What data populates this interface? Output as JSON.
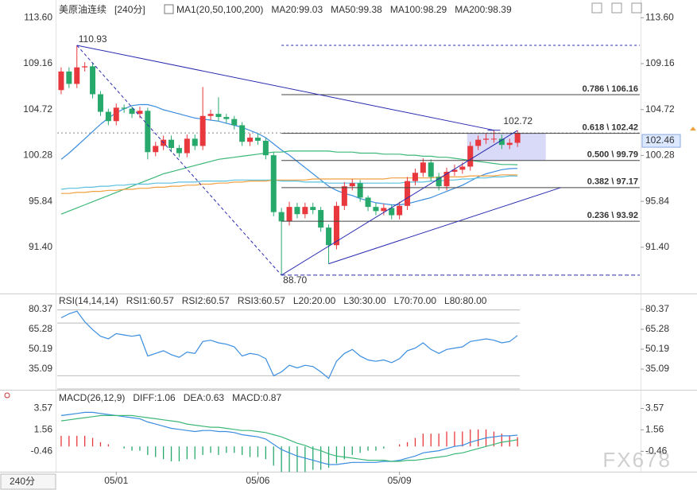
{
  "chart_data": [
    {
      "type": "candlestick",
      "title": "美原油连续",
      "period": "[240分]",
      "indicator": "MA1(20,50,100,200)",
      "categories": [
        null,
        null,
        null,
        null,
        null,
        null,
        null,
        "05/01",
        null,
        null,
        null,
        null,
        null,
        null,
        null,
        null,
        null,
        null,
        null,
        null,
        null,
        null,
        null,
        null,
        null,
        "05/06",
        null,
        null,
        null,
        null,
        null,
        null,
        null,
        null,
        null,
        null,
        null,
        null,
        null,
        null,
        null,
        null,
        null,
        "05/09",
        null,
        null,
        null,
        null,
        null,
        null,
        null,
        null,
        null,
        null,
        null,
        null,
        null,
        null,
        null
      ],
      "open": [
        106.6,
        108.4,
        107.2,
        108.8,
        108.9,
        106.2,
        104.5,
        103.6,
        104.9,
        104.8,
        104.3,
        104.6,
        100.6,
        101.2,
        101.8,
        101.0,
        100.5,
        101.9,
        101.2,
        104.1,
        104.3,
        104.0,
        103.8,
        103.2,
        101.6,
        102.0,
        101.7,
        100.3,
        94.8,
        93.9,
        95.3,
        94.6,
        95.3,
        95.0,
        93.3,
        91.6,
        95.4,
        97.3,
        97.6,
        96.2,
        95.3,
        94.9,
        95.2,
        94.5,
        95.4,
        97.8,
        98.6,
        99.6,
        98.2,
        97.3,
        98.7,
        98.9,
        99.2,
        101.2,
        101.8,
        101.9,
        101.9,
        101.3,
        101.5
      ],
      "high": [
        108.8,
        108.8,
        110.93,
        109.3,
        109.2,
        106.5,
        104.8,
        105.3,
        105.2,
        105.0,
        105.0,
        104.9,
        101.6,
        102.2,
        102.2,
        101.3,
        102.3,
        102.3,
        106.9,
        104.7,
        105.9,
        104.3,
        104.1,
        103.5,
        102.4,
        102.4,
        102.0,
        100.6,
        95.2,
        95.8,
        95.7,
        95.7,
        95.7,
        95.3,
        93.6,
        95.8,
        97.7,
        98.0,
        97.9,
        96.4,
        95.7,
        95.6,
        95.5,
        95.8,
        98.2,
        99.0,
        100.0,
        99.9,
        98.6,
        99.1,
        99.4,
        99.6,
        101.6,
        102.2,
        102.4,
        102.72,
        102.3,
        101.9,
        102.7
      ],
      "low": [
        106.2,
        106.8,
        106.8,
        108.4,
        105.8,
        104.1,
        103.2,
        103.2,
        104.4,
        103.9,
        103.9,
        99.9,
        100.2,
        100.8,
        100.6,
        100.1,
        100.1,
        100.8,
        100.8,
        103.7,
        103.6,
        103.4,
        102.8,
        101.2,
        101.2,
        101.3,
        99.9,
        94.4,
        88.7,
        93.5,
        94.2,
        94.2,
        94.6,
        92.9,
        89.8,
        91.2,
        95.0,
        96.9,
        95.8,
        94.9,
        94.5,
        94.5,
        94.1,
        94.1,
        95.0,
        97.4,
        98.2,
        97.8,
        96.9,
        96.9,
        98.3,
        98.5,
        98.8,
        100.8,
        101.4,
        101.5,
        100.9,
        100.9,
        101.1
      ],
      "close": [
        108.4,
        107.2,
        108.8,
        108.9,
        106.2,
        104.5,
        103.6,
        104.9,
        104.8,
        104.3,
        104.6,
        100.6,
        101.2,
        101.8,
        101.0,
        100.5,
        101.9,
        101.2,
        104.1,
        104.3,
        104.0,
        103.8,
        103.2,
        101.6,
        102.0,
        101.7,
        100.3,
        94.8,
        93.9,
        95.3,
        94.6,
        95.3,
        95.0,
        93.3,
        91.6,
        95.4,
        97.3,
        97.6,
        96.2,
        95.3,
        94.9,
        95.2,
        94.5,
        95.4,
        97.8,
        98.6,
        99.6,
        98.2,
        97.3,
        98.7,
        98.9,
        99.2,
        101.2,
        101.8,
        101.9,
        101.9,
        101.3,
        101.5,
        102.46
      ],
      "up_color": "#e8383d",
      "down_color": "#27a96c",
      "series": [
        {
          "name": "MA20",
          "label": "MA20:99.03",
          "color": "#3a8de0",
          "values": [
            99.9,
            100.5,
            101.2,
            101.9,
            102.6,
            103.3,
            103.9,
            104.4,
            104.8,
            105.1,
            105.2,
            105.2,
            105.0,
            104.7,
            104.5,
            104.3,
            104.1,
            103.9,
            103.8,
            103.7,
            103.6,
            103.4,
            103.2,
            103.0,
            102.7,
            102.4,
            102.0,
            101.4,
            100.8,
            100.3,
            99.7,
            99.1,
            98.5,
            97.9,
            97.3,
            96.9,
            96.6,
            96.4,
            96.1,
            95.9,
            95.7,
            95.6,
            95.5,
            95.5,
            95.6,
            95.8,
            96.0,
            96.2,
            96.5,
            96.8,
            97.1,
            97.4,
            97.8,
            98.2,
            98.5,
            98.7,
            98.9,
            99.0,
            99.03
          ]
        },
        {
          "name": "MA50",
          "label": "MA50:99.38",
          "color": "#3cb878",
          "values": [
            94.6,
            94.9,
            95.2,
            95.5,
            95.8,
            96.1,
            96.4,
            96.7,
            97.0,
            97.3,
            97.6,
            97.9,
            98.2,
            98.5,
            98.7,
            98.9,
            99.1,
            99.3,
            99.5,
            99.7,
            99.9,
            100.0,
            100.1,
            100.2,
            100.3,
            100.4,
            100.5,
            100.6,
            100.6,
            100.7,
            100.7,
            100.7,
            100.7,
            100.7,
            100.7,
            100.6,
            100.6,
            100.6,
            100.5,
            100.5,
            100.5,
            100.4,
            100.4,
            100.4,
            100.3,
            100.3,
            100.2,
            100.2,
            100.1,
            100.1,
            100.0,
            99.9,
            99.8,
            99.7,
            99.6,
            99.5,
            99.4,
            99.4,
            99.38
          ]
        },
        {
          "name": "MA100",
          "label": "MA100:98.29",
          "color": "#5bc0de",
          "values": [
            97.0,
            97.1,
            97.1,
            97.2,
            97.2,
            97.3,
            97.3,
            97.4,
            97.4,
            97.5,
            97.5,
            97.5,
            97.6,
            97.6,
            97.6,
            97.7,
            97.7,
            97.7,
            97.8,
            97.8,
            97.8,
            97.8,
            97.9,
            97.9,
            97.9,
            97.9,
            97.9,
            97.9,
            97.8,
            97.8,
            97.8,
            97.7,
            97.7,
            97.7,
            97.6,
            97.6,
            97.6,
            97.6,
            97.6,
            97.6,
            97.6,
            97.6,
            97.6,
            97.6,
            97.7,
            97.7,
            97.7,
            97.8,
            97.8,
            97.9,
            97.9,
            98.0,
            98.0,
            98.1,
            98.1,
            98.2,
            98.2,
            98.3,
            98.29
          ]
        },
        {
          "name": "MA200",
          "label": "MA200:98.39",
          "color": "#f0a040",
          "values": [
            96.6,
            96.6,
            96.7,
            96.7,
            96.8,
            96.8,
            96.9,
            96.9,
            97.0,
            97.0,
            97.1,
            97.1,
            97.2,
            97.2,
            97.3,
            97.3,
            97.4,
            97.4,
            97.5,
            97.5,
            97.6,
            97.6,
            97.7,
            97.7,
            97.8,
            97.8,
            97.8,
            97.9,
            97.9,
            97.9,
            97.9,
            97.9,
            98.0,
            98.0,
            98.0,
            98.0,
            98.0,
            98.0,
            98.0,
            98.0,
            98.0,
            98.0,
            98.1,
            98.1,
            98.1,
            98.1,
            98.1,
            98.1,
            98.2,
            98.2,
            98.2,
            98.2,
            98.3,
            98.3,
            98.3,
            98.3,
            98.4,
            98.4,
            98.39
          ]
        }
      ],
      "ylim": [
        87.0,
        114.7
      ],
      "yticks": [
        {
          "value": 113.6,
          "label": "113.60"
        },
        109.16,
        104.72,
        100.28,
        95.84,
        {
          "value": 91.4,
          "label": "91.40"
        }
      ],
      "fib_levels": [
        {
          "value": 106.16,
          "label": "0.786 \\ 106.16"
        },
        {
          "value": 102.42,
          "label": "0.618 \\ 102.42"
        },
        {
          "value": 99.79,
          "label": "0.500 \\ 99.79"
        },
        {
          "value": 97.17,
          "label": "0.382 \\ 97.17"
        },
        {
          "value": 93.92,
          "label": "0.236 \\ 93.92"
        }
      ],
      "annotations": [
        {
          "value": 110.93,
          "label": "110.93",
          "color": "#e8383d"
        },
        {
          "value": 88.7,
          "label": "88.70",
          "color": "#27a96c"
        },
        {
          "value": 102.72,
          "label": "102.72",
          "color": "#e8383d"
        }
      ],
      "last_price": {
        "value": 102.46,
        "label": "102.46"
      }
    },
    {
      "type": "line",
      "title": "RSI(14,14,14)",
      "legend": [
        {
          "label": "RSI1:60.57",
          "color": "#3a8de0"
        },
        {
          "label": "RSI2:60.57",
          "color": "#2bb0a0"
        },
        {
          "label": "RSI3:60.57",
          "color": "#5bc0de"
        },
        {
          "label": "L20:20.00",
          "color": "#b0b0b0"
        },
        {
          "label": "L30:30.00",
          "color": "#b0b0b0"
        },
        {
          "label": "L70:70.00",
          "color": "#b0b0b0"
        },
        {
          "label": "L80:80.00",
          "color": "#b0b0b0"
        }
      ],
      "levels": [
        20,
        30,
        70,
        80
      ],
      "series": [
        {
          "name": "RSI1",
          "color": "#3a8de0",
          "values": [
            74,
            77,
            79,
            71,
            65,
            60,
            58,
            62,
            61,
            60,
            61,
            45,
            47,
            49,
            46,
            44,
            48,
            47,
            56,
            57,
            55,
            54,
            52,
            45,
            47,
            46,
            43,
            30,
            33,
            38,
            36,
            38,
            37,
            33,
            28,
            41,
            47,
            50,
            45,
            42,
            41,
            42,
            40,
            43,
            49,
            51,
            55,
            50,
            47,
            50,
            51,
            52,
            56,
            57,
            58,
            57,
            55,
            56,
            60.57
          ]
        }
      ],
      "ylim": [
        19.4,
        91.2
      ],
      "yticks": [
        80.37,
        65.28,
        50.19,
        35.09
      ]
    },
    {
      "type": "macd",
      "title": "MACD(26,12,9)",
      "legend": [
        {
          "label": "DIFF:1.06",
          "color": "#3a8de0"
        },
        {
          "label": "DEA:0.63",
          "color": "#3cb878"
        },
        {
          "label": "MACD:0.87",
          "color": "#3a8de0"
        }
      ],
      "series": [
        {
          "name": "DIFF",
          "color": "#3a8de0",
          "values": [
            2.9,
            3.0,
            3.1,
            3.2,
            3.2,
            3.1,
            3.0,
            2.9,
            2.8,
            2.7,
            2.6,
            2.3,
            2.1,
            1.9,
            1.7,
            1.6,
            1.5,
            1.4,
            1.5,
            1.5,
            1.4,
            1.4,
            1.3,
            1.1,
            1.0,
            0.9,
            0.7,
            0.2,
            -0.3,
            -0.6,
            -0.9,
            -1.1,
            -1.3,
            -1.5,
            -1.7,
            -1.7,
            -1.6,
            -1.5,
            -1.5,
            -1.5,
            -1.5,
            -1.4,
            -1.4,
            -1.3,
            -1.1,
            -0.9,
            -0.6,
            -0.5,
            -0.4,
            -0.2,
            0.0,
            0.1,
            0.4,
            0.6,
            0.8,
            0.9,
            1.0,
            1.0,
            1.06
          ]
        },
        {
          "name": "DEA",
          "color": "#3cb878",
          "values": [
            2.4,
            2.5,
            2.6,
            2.7,
            2.8,
            2.9,
            2.9,
            2.9,
            2.9,
            2.9,
            2.8,
            2.7,
            2.6,
            2.5,
            2.4,
            2.3,
            2.1,
            2.0,
            1.9,
            1.8,
            1.8,
            1.7,
            1.6,
            1.5,
            1.5,
            1.4,
            1.3,
            1.1,
            0.9,
            0.6,
            0.3,
            0.1,
            -0.2,
            -0.4,
            -0.7,
            -0.9,
            -1.0,
            -1.1,
            -1.2,
            -1.3,
            -1.3,
            -1.3,
            -1.4,
            -1.4,
            -1.3,
            -1.3,
            -1.2,
            -1.1,
            -1.0,
            -0.9,
            -0.7,
            -0.6,
            -0.4,
            -0.2,
            0.0,
            0.2,
            0.4,
            0.5,
            0.63
          ]
        }
      ],
      "histogram": [
        1.0,
        1.0,
        1.0,
        1.0,
        0.8,
        0.4,
        0.2,
        0,
        -0.2,
        -0.4,
        -0.4,
        -0.8,
        -1.0,
        -1.2,
        -1.4,
        -1.4,
        -1.2,
        -1.2,
        -0.8,
        -0.6,
        -0.8,
        -0.6,
        -0.6,
        -0.8,
        -1.0,
        -1.0,
        -1.2,
        -1.8,
        -2.4,
        -2.4,
        -2.4,
        -2.4,
        -2.2,
        -2.2,
        -2.0,
        -1.6,
        -1.2,
        -0.8,
        -0.6,
        -0.4,
        -0.4,
        -0.2,
        0,
        0.2,
        0.4,
        0.8,
        1.2,
        1.2,
        1.2,
        1.4,
        1.4,
        1.4,
        1.6,
        1.6,
        1.6,
        1.4,
        1.2,
        1.0,
        0.87
      ],
      "up_color": "#e8383d",
      "down_color": "#27a96c",
      "ylim": [
        -2.3,
        5.1
      ],
      "yticks": [
        3.57,
        1.56,
        -0.46
      ]
    }
  ],
  "ui": {
    "period_button": "240分",
    "watermark": "FX678"
  }
}
